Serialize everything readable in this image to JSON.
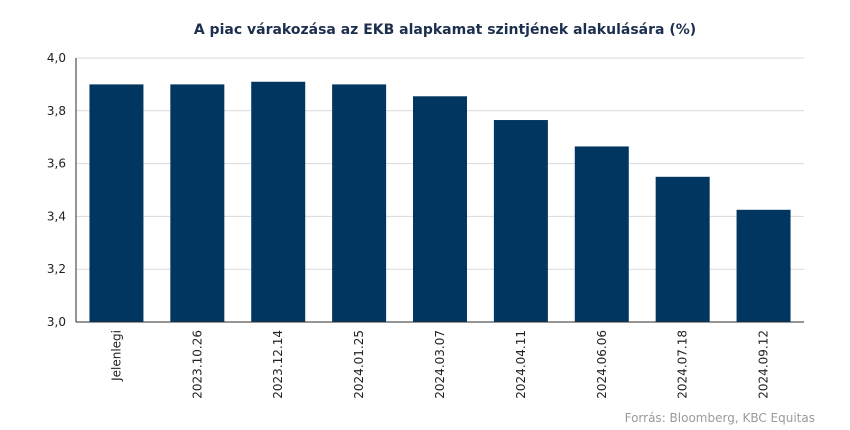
{
  "chart_data": {
    "type": "bar",
    "title": "A piac várakozása az EKB alapkamat szintjének alakulására (%)",
    "categories": [
      "Jelenlegi",
      "2023.10.26",
      "2023.12.14",
      "2024.01.25",
      "2024.03.07",
      "2024.04.11",
      "2024.06.06",
      "2024.07.18",
      "2024.09.12"
    ],
    "values": [
      3.9,
      3.9,
      3.91,
      3.9,
      3.855,
      3.765,
      3.665,
      3.55,
      3.425
    ],
    "ylim": [
      3.0,
      4.0
    ],
    "yticks": [
      "3,0",
      "3,2",
      "3,4",
      "3,6",
      "3,8",
      "4,0"
    ],
    "grid": true,
    "bar_color": "#003660",
    "source": "Forrás: Bloomberg,  KBC Equitas"
  }
}
